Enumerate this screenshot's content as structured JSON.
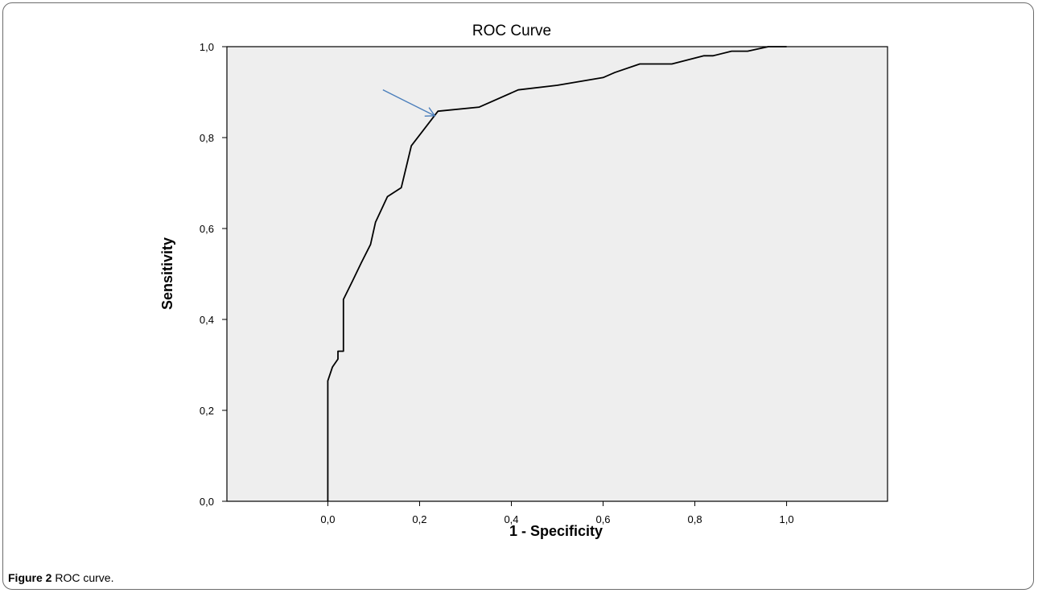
{
  "figure": {
    "caption_label": "Figure 2",
    "caption_text": " ROC curve."
  },
  "chart_data": {
    "type": "line",
    "title": "ROC Curve",
    "xlabel": "1 - Specificity",
    "ylabel": "Sensitivity",
    "xlim": [
      -0.22,
      1.22
    ],
    "ylim": [
      0,
      1
    ],
    "x_ticks": [
      0.0,
      0.2,
      0.4,
      0.6,
      0.8,
      1.0
    ],
    "x_tick_labels": [
      "0,0",
      "0,2",
      "0,4",
      "0,6",
      "0,8",
      "1,0"
    ],
    "y_ticks": [
      0.0,
      0.2,
      0.4,
      0.6,
      0.8,
      1.0
    ],
    "y_tick_labels": [
      "0,0",
      "0,2",
      "0,4",
      "0,6",
      "0,8",
      "1,0"
    ],
    "grid": false,
    "plot_background": "#eeeeee",
    "line_color": "#000000",
    "annotation_arrow_color": "#4a7ebb",
    "series": [
      {
        "x": [
          0.0,
          0.0,
          0.01,
          0.022,
          0.022,
          0.034,
          0.034,
          0.054,
          0.073,
          0.093,
          0.104,
          0.13,
          0.16,
          0.182,
          0.24,
          0.24,
          0.33,
          0.415,
          0.5,
          0.6,
          0.625,
          0.68,
          0.75,
          0.82,
          0.84,
          0.88,
          0.915,
          0.96,
          1.0
        ],
        "y": [
          0.0,
          0.265,
          0.295,
          0.313,
          0.33,
          0.33,
          0.444,
          0.485,
          0.525,
          0.565,
          0.614,
          0.67,
          0.69,
          0.782,
          0.858,
          0.858,
          0.867,
          0.905,
          0.915,
          0.932,
          0.943,
          0.962,
          0.962,
          0.98,
          0.98,
          0.99,
          0.99,
          1.0,
          1.0
        ]
      }
    ],
    "annotation": {
      "type": "arrow",
      "from": [
        0.12,
        0.905
      ],
      "to": [
        0.233,
        0.848
      ]
    }
  }
}
